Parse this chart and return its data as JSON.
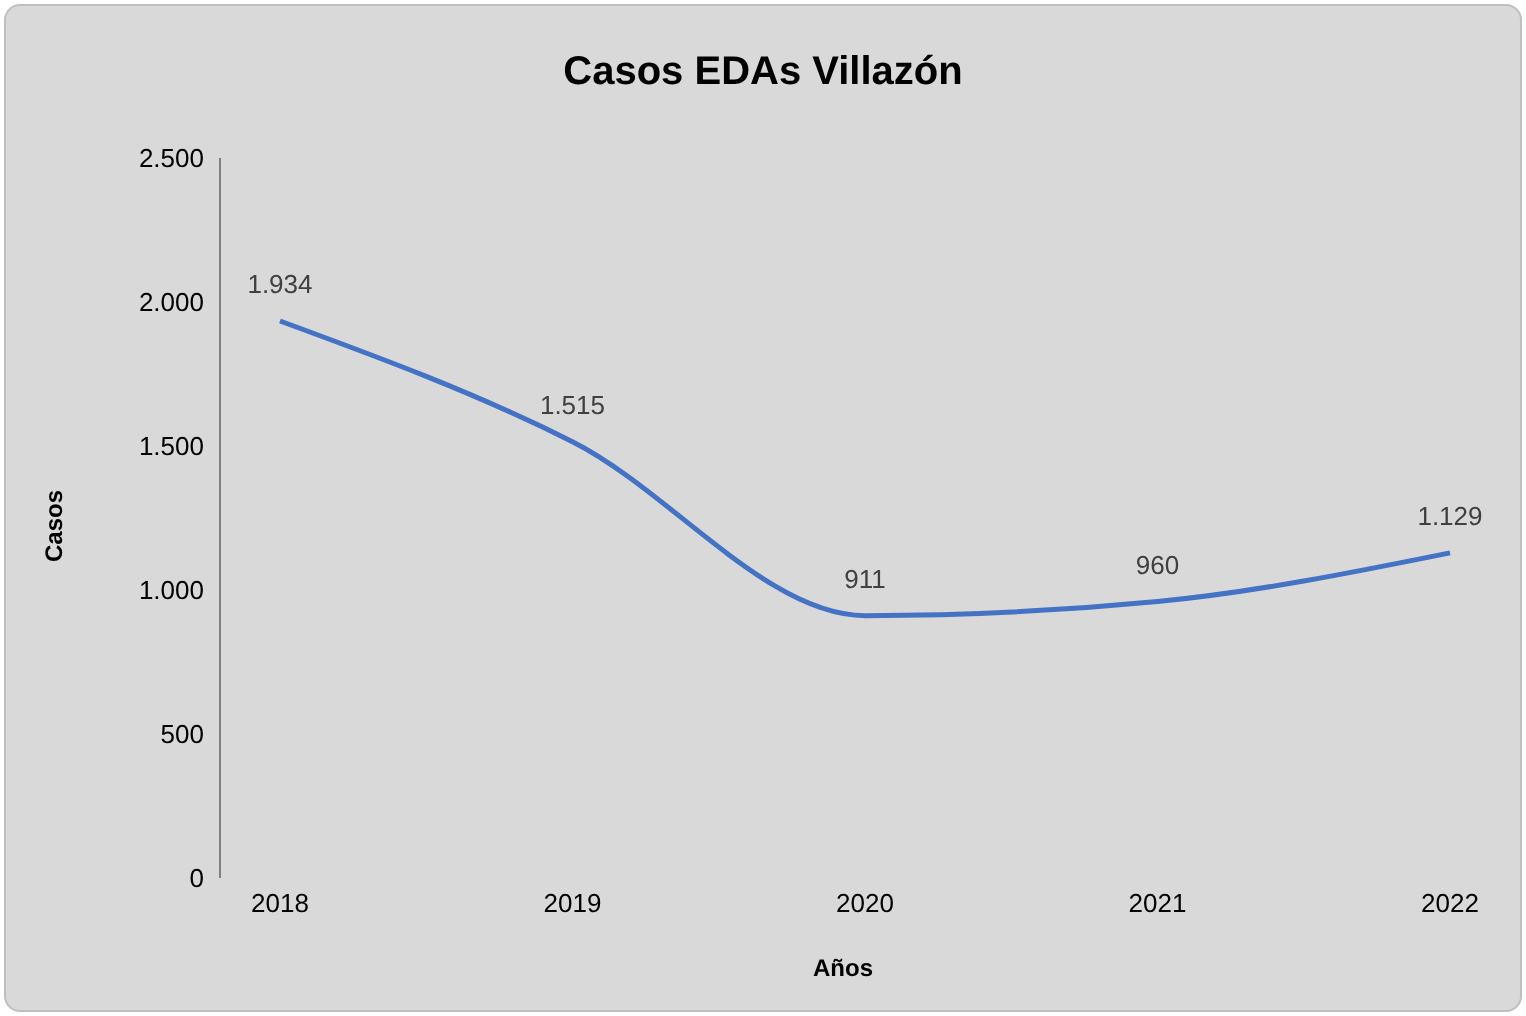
{
  "chart_data": {
    "type": "line",
    "title": "Casos EDAs Villazón",
    "xlabel": "Años",
    "ylabel": "Casos",
    "categories": [
      "2018",
      "2019",
      "2020",
      "2021",
      "2022"
    ],
    "series": [
      {
        "color": "#4472c4",
        "values": [
          1934,
          1515,
          911,
          960,
          1129
        ],
        "value_labels": [
          "1.934",
          "1.515",
          "911",
          "960",
          "1.129"
        ]
      }
    ],
    "ylim": [
      0,
      2500
    ],
    "yticks": [
      {
        "value": 0,
        "label": "0"
      },
      {
        "value": 500,
        "label": "500"
      },
      {
        "value": 1000,
        "label": "1.000"
      },
      {
        "value": 1500,
        "label": "1.500"
      },
      {
        "value": 2000,
        "label": "2.000"
      },
      {
        "value": 2500,
        "label": "2.500"
      }
    ],
    "grid": false,
    "legend": false,
    "marker": "none",
    "line_style": "solid"
  }
}
